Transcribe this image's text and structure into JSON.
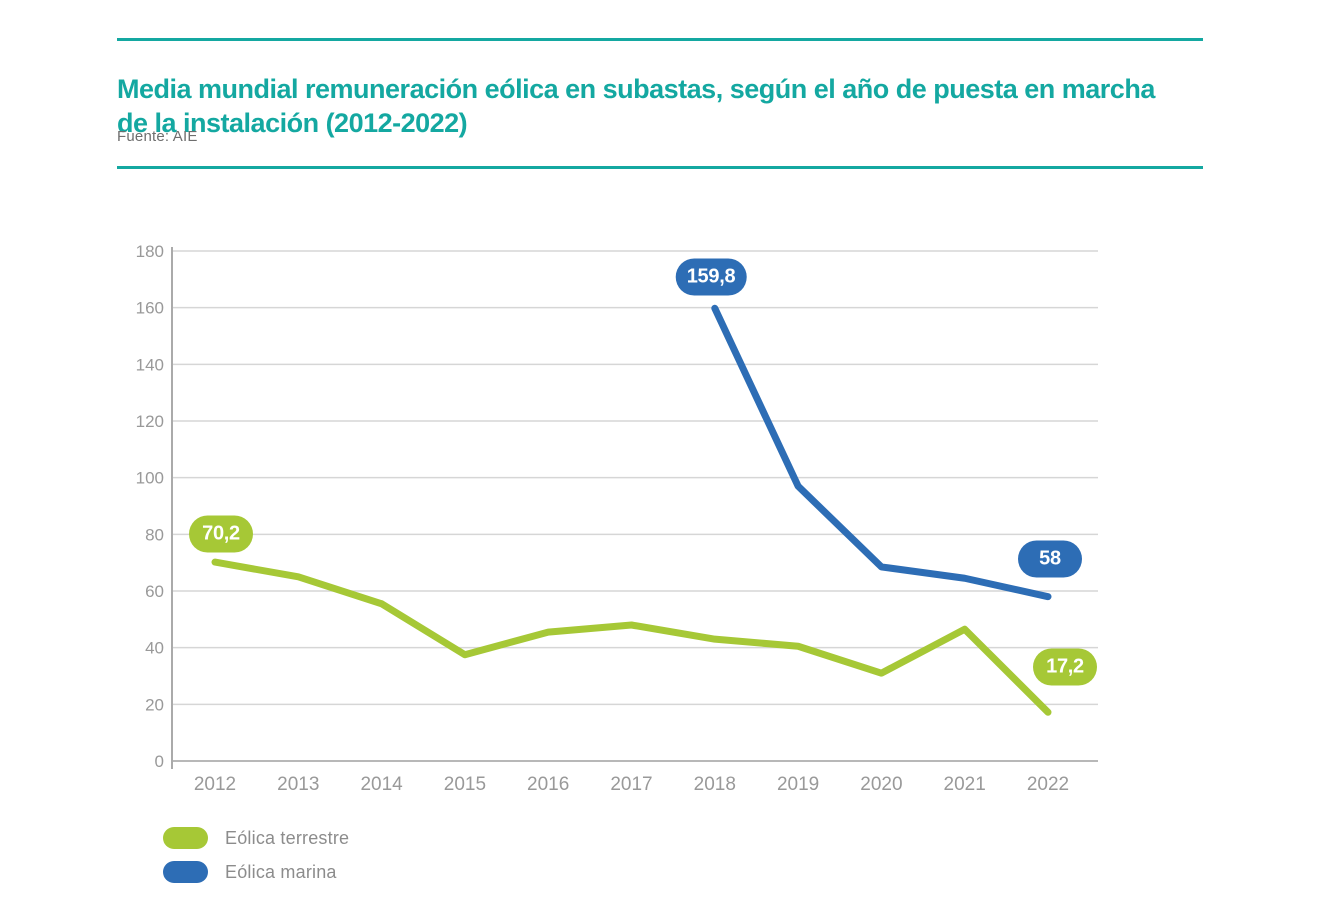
{
  "header": {
    "title_line1": "Media mundial remuneración eólica en subastas, según el año de puesta en marcha",
    "title_line2": "de la instalación (2012-2022)",
    "source": "Fuente: AIE"
  },
  "colors": {
    "accent_teal": "#14a8a1",
    "green": "#a6c836",
    "blue": "#2d6db5",
    "gridline": "#d6d6d6",
    "axis_line": "#aaaaaa",
    "zero_line": "#b8b8b8",
    "tick_text": "#999999",
    "legend_text": "#8c8c8c"
  },
  "chart_data": {
    "type": "line",
    "title": "Media mundial remuneración eólica en subastas, según el año de puesta en marcha de la instalación (2012-2022)",
    "source": "Fuente: AIE",
    "categories": [
      "2012",
      "2013",
      "2014",
      "2015",
      "2016",
      "2017",
      "2018",
      "2019",
      "2020",
      "2021",
      "2022"
    ],
    "series": [
      {
        "name": "Eólica terrestre",
        "color": "#a6c836",
        "values": [
          70.2,
          65,
          55.5,
          37.5,
          45.5,
          48,
          43,
          40.5,
          31,
          46.5,
          17.2
        ]
      },
      {
        "name": "Eólica marina",
        "color": "#2d6db5",
        "values": [
          null,
          null,
          null,
          null,
          null,
          null,
          159.8,
          97,
          68.5,
          64.5,
          58
        ]
      }
    ],
    "annotations": [
      {
        "series": 0,
        "year": "2012",
        "label": "70,2"
      },
      {
        "series": 1,
        "year": "2018",
        "label": "159,8"
      },
      {
        "series": 1,
        "year": "2022",
        "label": "58"
      },
      {
        "series": 0,
        "year": "2022",
        "label": "17,2"
      }
    ],
    "ylim": [
      0,
      180
    ],
    "ytick_step": 20,
    "grid": true,
    "legend_position": "bottom-left"
  },
  "legend": {
    "items": [
      {
        "label": "Eólica terrestre",
        "color": "#a6c836"
      },
      {
        "label": "Eólica marina",
        "color": "#2d6db5"
      }
    ]
  }
}
